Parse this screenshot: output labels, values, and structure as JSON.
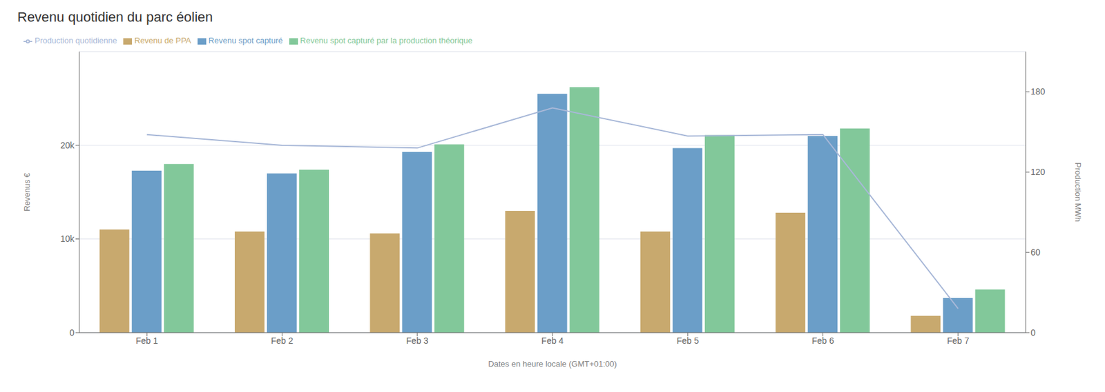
{
  "chart_data": {
    "type": "bar",
    "title": "Revenu quotidien du parc éolien",
    "x_label": "Dates en heure locale (GMT+01:00)",
    "y_label": "Revenus €",
    "y2_label": "Production MWh",
    "categories": [
      "Feb 1",
      "Feb 2",
      "Feb 3",
      "Feb 4",
      "Feb 5",
      "Feb 6",
      "Feb 7"
    ],
    "series": [
      {
        "name": "Revenu de PPA",
        "type": "bar",
        "color": "#C8A96E",
        "values": [
          11000,
          10800,
          10600,
          13000,
          10800,
          12800,
          1800
        ]
      },
      {
        "name": "Revenu spot capturé",
        "type": "bar",
        "color": "#6B9EC8",
        "values": [
          17300,
          17000,
          19300,
          25500,
          19700,
          21000,
          3700
        ]
      },
      {
        "name": "Revenu spot capturé par la production théorique",
        "type": "bar",
        "color": "#82C89A",
        "values": [
          18000,
          17400,
          20100,
          26200,
          21100,
          21800,
          4600
        ]
      },
      {
        "name": "Production quotidienne",
        "type": "line",
        "color": "#A8B8D8",
        "axis": "y2",
        "values": [
          148,
          140,
          138,
          168,
          147,
          148,
          18
        ]
      }
    ],
    "ylim": [
      0,
      30000
    ],
    "yticks": [
      0,
      {
        "value": 10000,
        "label": "10k"
      },
      {
        "value": 20000,
        "label": "20k"
      }
    ],
    "y2lim": [
      0,
      210
    ],
    "y2ticks": [
      0,
      60,
      120,
      180
    ],
    "grid": true,
    "legend": "top-left"
  }
}
